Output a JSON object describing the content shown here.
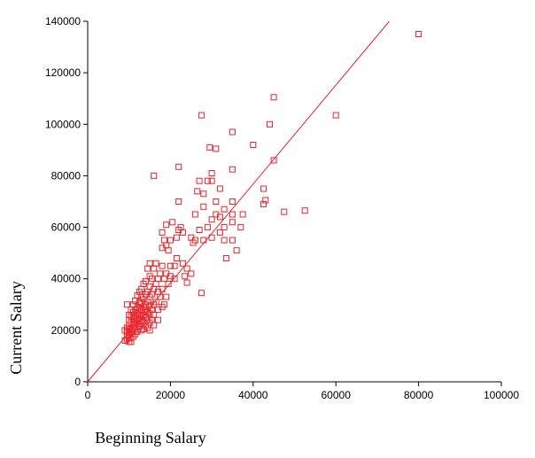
{
  "chart_data": {
    "type": "scatter",
    "title": "",
    "xlabel": "Beginning Salary",
    "ylabel": "Current Salary",
    "xlim": [
      0,
      100000
    ],
    "ylim": [
      0,
      140000
    ],
    "x_ticks": [
      0,
      20000,
      40000,
      60000,
      80000,
      100000
    ],
    "y_ticks": [
      0,
      20000,
      40000,
      60000,
      80000,
      100000,
      120000,
      140000
    ],
    "x_tick_labels": [
      "0",
      "20000",
      "40000",
      "60000",
      "80000",
      "100000"
    ],
    "y_tick_labels": [
      "0",
      "20000",
      "40000",
      "60000",
      "80000",
      "100000",
      "120000",
      "140000"
    ],
    "grid": false,
    "legend": "none",
    "marker": "hollow-square",
    "color": "#e8232a",
    "fit_line": {
      "intercept": 0,
      "slope": 1.92
    },
    "points": [
      [
        80000,
        135000
      ],
      [
        60000,
        103500
      ],
      [
        45000,
        110500
      ],
      [
        44000,
        100000
      ],
      [
        45000,
        86000
      ],
      [
        52500,
        66500
      ],
      [
        47500,
        66000
      ],
      [
        43000,
        70500
      ],
      [
        42500,
        75000
      ],
      [
        42500,
        69000
      ],
      [
        40000,
        92000
      ],
      [
        35000,
        97000
      ],
      [
        35000,
        82500
      ],
      [
        35000,
        70000
      ],
      [
        35000,
        65000
      ],
      [
        35000,
        62000
      ],
      [
        35000,
        55000
      ],
      [
        36000,
        51000
      ],
      [
        37500,
        65000
      ],
      [
        37000,
        60000
      ],
      [
        33500,
        48000
      ],
      [
        33000,
        67000
      ],
      [
        33000,
        60000
      ],
      [
        33000,
        55000
      ],
      [
        32000,
        75000
      ],
      [
        32000,
        64000
      ],
      [
        32000,
        58000
      ],
      [
        31000,
        90500
      ],
      [
        31000,
        70000
      ],
      [
        31000,
        65000
      ],
      [
        30000,
        81000
      ],
      [
        30000,
        78000
      ],
      [
        30000,
        63000
      ],
      [
        30000,
        56000
      ],
      [
        29500,
        91000
      ],
      [
        29000,
        78000
      ],
      [
        29000,
        60000
      ],
      [
        28000,
        73000
      ],
      [
        28000,
        68000
      ],
      [
        28000,
        55000
      ],
      [
        27500,
        103500
      ],
      [
        27500,
        34500
      ],
      [
        27000,
        78000
      ],
      [
        27000,
        59000
      ],
      [
        26500,
        74000
      ],
      [
        26000,
        65000
      ],
      [
        26000,
        55000
      ],
      [
        25500,
        54000
      ],
      [
        25000,
        56000
      ],
      [
        25000,
        42000
      ],
      [
        24000,
        44000
      ],
      [
        24000,
        38500
      ],
      [
        23500,
        41000
      ],
      [
        23000,
        58000
      ],
      [
        23000,
        46000
      ],
      [
        22500,
        60000
      ],
      [
        22000,
        83500
      ],
      [
        22000,
        70000
      ],
      [
        22000,
        59000
      ],
      [
        21500,
        56000
      ],
      [
        21500,
        48000
      ],
      [
        21000,
        45000
      ],
      [
        21000,
        40000
      ],
      [
        20500,
        62000
      ],
      [
        20000,
        55000
      ],
      [
        20000,
        45000
      ],
      [
        20000,
        41000
      ],
      [
        19500,
        51000
      ],
      [
        19500,
        38000
      ],
      [
        19000,
        61000
      ],
      [
        19000,
        53000
      ],
      [
        19000,
        42000
      ],
      [
        19000,
        33000
      ],
      [
        18500,
        55000
      ],
      [
        18500,
        40000
      ],
      [
        18500,
        30000
      ],
      [
        18000,
        58000
      ],
      [
        18000,
        52000
      ],
      [
        18000,
        45000
      ],
      [
        18000,
        36000
      ],
      [
        18000,
        29000
      ],
      [
        17500,
        42000
      ],
      [
        17500,
        33000
      ],
      [
        17000,
        40000
      ],
      [
        17000,
        35000
      ],
      [
        17000,
        28000
      ],
      [
        17000,
        24000
      ],
      [
        16500,
        46000
      ],
      [
        16500,
        38000
      ],
      [
        16500,
        31000
      ],
      [
        16000,
        80000
      ],
      [
        16000,
        44000
      ],
      [
        16000,
        36000
      ],
      [
        16000,
        30000
      ],
      [
        16000,
        26000
      ],
      [
        16000,
        22000
      ],
      [
        15500,
        40000
      ],
      [
        15500,
        34000
      ],
      [
        15500,
        28000
      ],
      [
        15500,
        24000
      ],
      [
        15000,
        46000
      ],
      [
        15000,
        41000
      ],
      [
        15000,
        37000
      ],
      [
        15000,
        33000
      ],
      [
        15000,
        29500
      ],
      [
        15000,
        26500
      ],
      [
        15000,
        23000
      ],
      [
        15000,
        20000
      ],
      [
        14500,
        44000
      ],
      [
        14500,
        35000
      ],
      [
        14500,
        31000
      ],
      [
        14500,
        27000
      ],
      [
        14500,
        24000
      ],
      [
        14500,
        21000
      ],
      [
        14000,
        39000
      ],
      [
        14000,
        34000
      ],
      [
        14000,
        30000
      ],
      [
        14000,
        27500
      ],
      [
        14000,
        25000
      ],
      [
        14000,
        22000
      ],
      [
        13500,
        38000
      ],
      [
        13500,
        32000
      ],
      [
        13500,
        29000
      ],
      [
        13500,
        26000
      ],
      [
        13500,
        23500
      ],
      [
        13500,
        20500
      ],
      [
        13000,
        36000
      ],
      [
        13000,
        33000
      ],
      [
        13000,
        30500
      ],
      [
        13000,
        28000
      ],
      [
        13000,
        25500
      ],
      [
        13000,
        23000
      ],
      [
        13000,
        20000
      ],
      [
        12500,
        35000
      ],
      [
        12500,
        31000
      ],
      [
        12500,
        28500
      ],
      [
        12500,
        26000
      ],
      [
        12500,
        24000
      ],
      [
        12500,
        21500
      ],
      [
        12000,
        33500
      ],
      [
        12000,
        29000
      ],
      [
        12000,
        26500
      ],
      [
        12000,
        24500
      ],
      [
        12000,
        22500
      ],
      [
        12000,
        19500
      ],
      [
        11500,
        31500
      ],
      [
        11500,
        28000
      ],
      [
        11500,
        25500
      ],
      [
        11500,
        23000
      ],
      [
        11500,
        21000
      ],
      [
        11500,
        18500
      ],
      [
        11000,
        30000
      ],
      [
        11000,
        27000
      ],
      [
        11000,
        24500
      ],
      [
        11000,
        22000
      ],
      [
        11000,
        20000
      ],
      [
        11000,
        17500
      ],
      [
        10500,
        28000
      ],
      [
        10500,
        25500
      ],
      [
        10500,
        23000
      ],
      [
        10500,
        21000
      ],
      [
        10500,
        19000
      ],
      [
        10500,
        17000
      ],
      [
        10500,
        15500
      ],
      [
        10000,
        26000
      ],
      [
        10000,
        24000
      ],
      [
        10000,
        22000
      ],
      [
        10000,
        20500
      ],
      [
        10000,
        18500
      ],
      [
        10000,
        17000
      ],
      [
        10000,
        15500
      ],
      [
        9500,
        30000
      ],
      [
        9500,
        21000
      ],
      [
        9500,
        19500
      ],
      [
        9500,
        18000
      ],
      [
        9500,
        16500
      ],
      [
        9000,
        20000
      ],
      [
        9000,
        16000
      ]
    ]
  }
}
